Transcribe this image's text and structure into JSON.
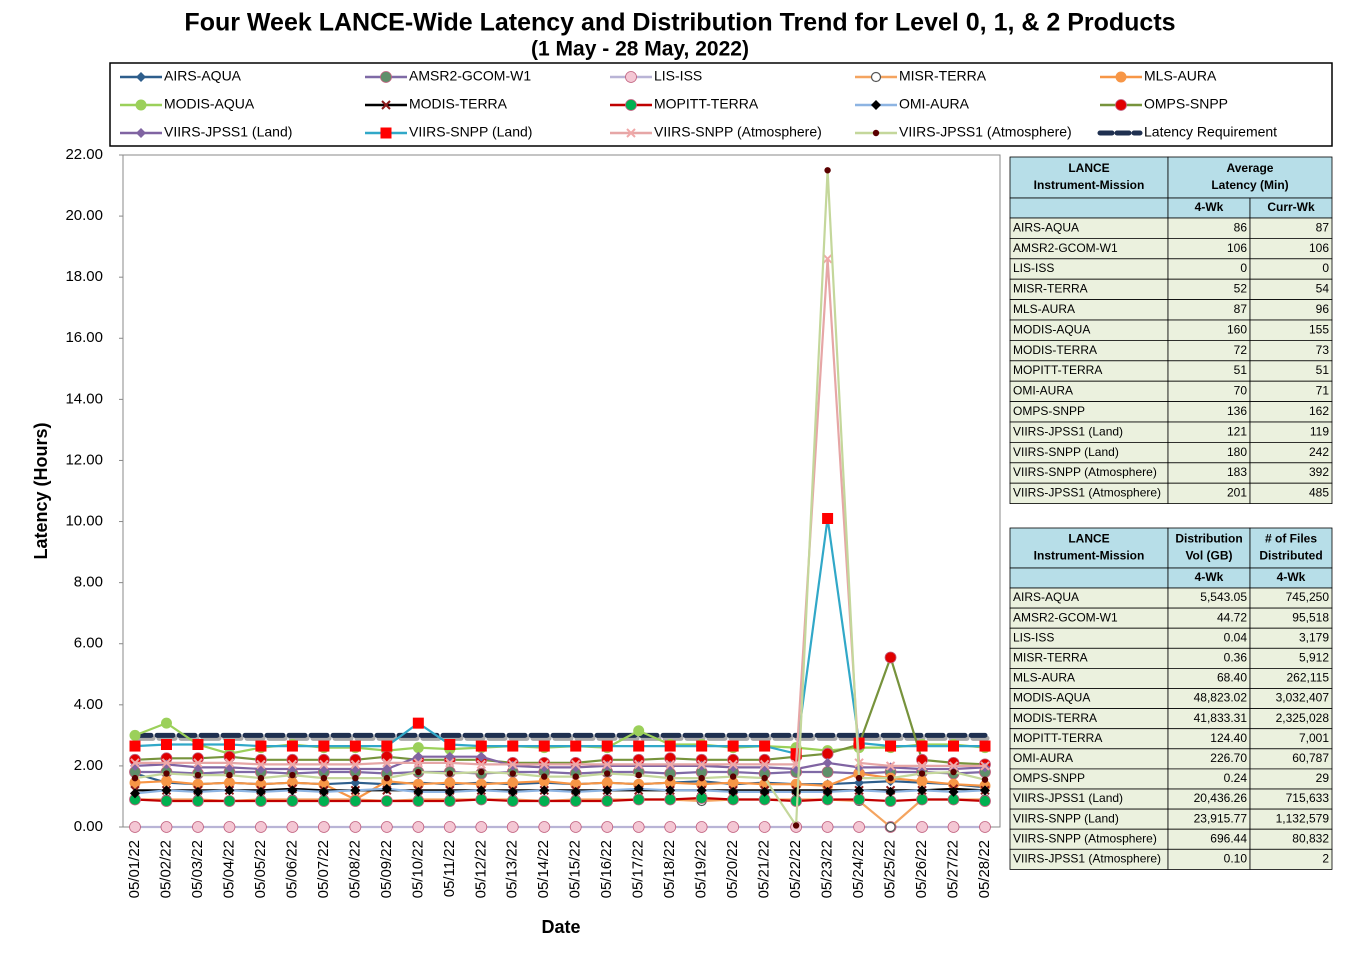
{
  "chart_data": {
    "type": "line",
    "title": "Four Week LANCE-Wide Latency and Distribution Trend for Level 0, 1, & 2 Products",
    "subtitle": "(1  May   - 28  May,  2022)",
    "x_label": "Date",
    "y_label": "Latency (Hours)",
    "categories": [
      "05/01/22",
      "05/02/22",
      "05/03/22",
      "05/04/22",
      "05/05/22",
      "05/06/22",
      "05/07/22",
      "05/08/22",
      "05/09/22",
      "05/10/22",
      "05/11/22",
      "05/12/22",
      "05/13/22",
      "05/14/22",
      "05/15/22",
      "05/16/22",
      "05/17/22",
      "05/18/22",
      "05/19/22",
      "05/20/22",
      "05/21/22",
      "05/22/22",
      "05/23/22",
      "05/24/22",
      "05/25/22",
      "05/26/22",
      "05/27/22",
      "05/28/22"
    ],
    "ylim": [
      0,
      22
    ],
    "yticks": [
      {
        "value": 0,
        "label": "0.00"
      },
      {
        "value": 2,
        "label": "2.00"
      },
      {
        "value": 4,
        "label": "4.00"
      },
      {
        "value": 6,
        "label": "6.00"
      },
      {
        "value": 8,
        "label": "8.00"
      },
      {
        "value": 10,
        "label": "10.00"
      },
      {
        "value": 12,
        "label": "12.00"
      },
      {
        "value": 14,
        "label": "14.00"
      },
      {
        "value": 16,
        "label": "16.00"
      },
      {
        "value": 18,
        "label": "18.00"
      },
      {
        "value": 20,
        "label": "20.00"
      },
      {
        "value": 22,
        "label": "22.00"
      }
    ],
    "grid": false,
    "series": [
      {
        "name": "AIRS-AQUA",
        "color": "#2e5e8c",
        "marker": "diamond",
        "marker_color": "#2e5e8c",
        "values": [
          1.75,
          1.45,
          1.4,
          1.45,
          1.4,
          1.45,
          1.4,
          1.45,
          1.4,
          1.45,
          1.4,
          1.45,
          1.4,
          1.45,
          1.4,
          1.45,
          1.4,
          1.45,
          1.5,
          1.4,
          1.45,
          1.4,
          1.4,
          1.45,
          1.5,
          1.45,
          1.4,
          1.3
        ]
      },
      {
        "name": "AMSR2-GCOM-W1",
        "color": "#7f6aa6",
        "marker": "circle",
        "marker_color": "#5f8f6a",
        "values": [
          1.8,
          1.8,
          1.75,
          1.8,
          1.8,
          1.75,
          1.8,
          1.8,
          1.75,
          1.8,
          1.8,
          1.75,
          1.8,
          1.8,
          1.75,
          1.8,
          1.8,
          1.75,
          1.8,
          1.8,
          1.75,
          1.8,
          1.8,
          1.75,
          1.8,
          1.8,
          1.75,
          1.8
        ]
      },
      {
        "name": "LIS-ISS",
        "color": "#b9b4d6",
        "marker": "circle",
        "marker_color": "#f4c7d4",
        "values": [
          0,
          0,
          0,
          0,
          0,
          0,
          0,
          0,
          0,
          0,
          0,
          0,
          0,
          0,
          0,
          0,
          0,
          0,
          0,
          0,
          0,
          0,
          0,
          0,
          0,
          0,
          0,
          0
        ]
      },
      {
        "name": "MISR-TERRA",
        "color": "#f4a460",
        "marker": "open-circle",
        "marker_color": "#ffffff",
        "values": [
          0.9,
          0.9,
          0.9,
          0.85,
          0.9,
          0.9,
          0.9,
          0.9,
          0.85,
          0.9,
          0.9,
          0.9,
          0.9,
          0.85,
          0.9,
          0.9,
          0.9,
          0.9,
          0.85,
          0.9,
          0.9,
          0.9,
          0.9,
          0.85,
          0,
          0.9,
          0.9,
          0.9
        ]
      },
      {
        "name": "MLS-AURA",
        "color": "#f79646",
        "marker": "circle",
        "marker_color": "#f79646",
        "values": [
          1.45,
          1.5,
          1.4,
          1.45,
          1.4,
          1.45,
          1.4,
          0.9,
          1.5,
          1.4,
          1.45,
          1.4,
          1.45,
          1.5,
          1.4,
          1.45,
          1.4,
          1.45,
          1.4,
          1.45,
          1.4,
          1.4,
          1.35,
          1.75,
          1.6,
          1.5,
          1.4,
          1.35
        ]
      },
      {
        "name": "MODIS-AQUA",
        "color": "#9bd05a",
        "marker": "circle",
        "marker_color": "#9bd05a",
        "values": [
          3.0,
          3.4,
          2.7,
          2.4,
          2.6,
          2.7,
          2.6,
          2.6,
          2.5,
          2.6,
          2.55,
          2.6,
          2.65,
          2.6,
          2.65,
          2.6,
          3.15,
          2.7,
          2.7,
          2.6,
          2.65,
          2.6,
          2.5,
          2.6,
          2.6,
          2.7,
          2.7,
          2.6
        ]
      },
      {
        "name": "MODIS-TERRA",
        "color": "#000000",
        "marker": "x",
        "marker_color": "#8b1a1a",
        "values": [
          1.2,
          1.2,
          1.2,
          1.2,
          1.2,
          1.25,
          1.2,
          1.2,
          1.2,
          1.2,
          1.2,
          1.2,
          1.2,
          1.2,
          1.2,
          1.2,
          1.2,
          1.2,
          1.2,
          1.2,
          1.2,
          1.2,
          1.2,
          1.2,
          1.2,
          1.2,
          1.25,
          1.2
        ]
      },
      {
        "name": "MOPITT-TERRA",
        "color": "#c00000",
        "marker": "circle",
        "marker_color": "#00b050",
        "values": [
          0.9,
          0.85,
          0.85,
          0.85,
          0.85,
          0.85,
          0.85,
          0.85,
          0.85,
          0.85,
          0.85,
          0.9,
          0.85,
          0.85,
          0.85,
          0.85,
          0.9,
          0.9,
          0.95,
          0.9,
          0.9,
          0.85,
          0.9,
          0.9,
          0.85,
          0.9,
          0.9,
          0.85
        ]
      },
      {
        "name": "OMI-AURA",
        "color": "#8db4e2",
        "marker": "diamond",
        "marker_color": "#000000",
        "values": [
          1.1,
          1.2,
          1.15,
          1.2,
          1.15,
          1.2,
          1.15,
          1.2,
          1.25,
          1.15,
          1.15,
          1.2,
          1.15,
          1.2,
          1.15,
          1.2,
          1.25,
          1.2,
          1.2,
          1.15,
          1.15,
          1.15,
          1.15,
          1.2,
          1.15,
          1.2,
          1.15,
          1.2
        ]
      },
      {
        "name": "OMPS-SNPP",
        "color": "#77933c",
        "marker": "circle",
        "marker_color": "#e00000",
        "values": [
          2.2,
          2.25,
          2.25,
          2.3,
          2.2,
          2.2,
          2.2,
          2.2,
          2.3,
          2.2,
          2.2,
          2.2,
          2.1,
          2.1,
          2.1,
          2.2,
          2.2,
          2.25,
          2.2,
          2.2,
          2.2,
          2.3,
          2.4,
          2.7,
          5.55,
          2.2,
          2.1,
          2.05
        ]
      },
      {
        "name": "VIIRS-JPSS1 (Land)",
        "color": "#8064a2",
        "marker": "diamond",
        "marker_color": "#8064a2",
        "values": [
          2.0,
          2.05,
          1.95,
          1.95,
          1.9,
          1.9,
          1.9,
          1.9,
          1.9,
          2.3,
          2.3,
          2.3,
          2.0,
          1.95,
          1.95,
          2.0,
          2.0,
          2.0,
          2.0,
          1.95,
          1.95,
          1.9,
          2.1,
          1.95,
          1.95,
          1.9,
          1.9,
          1.95
        ]
      },
      {
        "name": "VIIRS-SNPP (Land)",
        "color": "#31a8c8",
        "marker": "square",
        "marker_color": "#ff0000",
        "values": [
          2.65,
          2.7,
          2.7,
          2.7,
          2.65,
          2.65,
          2.65,
          2.65,
          2.65,
          3.4,
          2.7,
          2.65,
          2.65,
          2.65,
          2.65,
          2.65,
          2.65,
          2.65,
          2.65,
          2.65,
          2.65,
          2.4,
          10.1,
          2.75,
          2.65,
          2.65,
          2.65,
          2.65
        ]
      },
      {
        "name": "VIIRS-SNPP (Atmosphere)",
        "color": "#e6a6a6",
        "marker": "x",
        "marker_color": "#f0a8a8",
        "values": [
          2.1,
          2.1,
          2.1,
          2.1,
          2.05,
          2.05,
          2.05,
          2.05,
          2.1,
          2.1,
          2.1,
          2.05,
          2.05,
          2.05,
          2.05,
          2.05,
          2.05,
          2.05,
          2.05,
          2.05,
          2.05,
          2.05,
          18.6,
          2.1,
          2.0,
          2.0,
          2.0,
          2.0
        ]
      },
      {
        "name": "VIIRS-JPSS1 (Atmosphere)",
        "color": "#c4d79b",
        "marker": "small-circle",
        "marker_color": "#5a0000",
        "values": [
          1.6,
          1.75,
          1.7,
          1.7,
          1.6,
          1.7,
          1.6,
          1.6,
          1.6,
          1.8,
          1.75,
          1.8,
          1.75,
          1.65,
          1.65,
          1.75,
          1.7,
          1.6,
          1.6,
          1.65,
          1.6,
          0.05,
          21.5,
          1.6,
          1.6,
          1.75,
          1.8,
          1.55
        ]
      },
      {
        "name": "Latency Requirement",
        "color": "#1f3050",
        "marker": "none",
        "marker_color": "#1f3050",
        "dashed": true,
        "values": [
          3,
          3,
          3,
          3,
          3,
          3,
          3,
          3,
          3,
          3,
          3,
          3,
          3,
          3,
          3,
          3,
          3,
          3,
          3,
          3,
          3,
          3,
          3,
          3,
          3,
          3,
          3,
          3
        ]
      }
    ]
  },
  "tables": [
    {
      "header_name": [
        "LANCE",
        "Instrument-Mission"
      ],
      "header_group": [
        "Average",
        "Latency (Min)"
      ],
      "header_cols": [
        "4-Wk",
        "Curr-Wk"
      ],
      "rows": [
        [
          "AIRS-AQUA",
          "86",
          "87"
        ],
        [
          "AMSR2-GCOM-W1",
          "106",
          "106"
        ],
        [
          "LIS-ISS",
          "0",
          "0"
        ],
        [
          "MISR-TERRA",
          "52",
          "54"
        ],
        [
          "MLS-AURA",
          "87",
          "96"
        ],
        [
          "MODIS-AQUA",
          "160",
          "155"
        ],
        [
          "MODIS-TERRA",
          "72",
          "73"
        ],
        [
          "MOPITT-TERRA",
          "51",
          "51"
        ],
        [
          "OMI-AURA",
          "70",
          "71"
        ],
        [
          "OMPS-SNPP",
          "136",
          "162"
        ],
        [
          "VIIRS-JPSS1 (Land)",
          "121",
          "119"
        ],
        [
          "VIIRS-SNPP (Land)",
          "180",
          "242"
        ],
        [
          "VIIRS-SNPP (Atmosphere)",
          "183",
          "392"
        ],
        [
          "VIIRS-JPSS1 (Atmosphere)",
          "201",
          "485"
        ]
      ]
    },
    {
      "header_name": [
        "LANCE",
        "Instrument-Mission"
      ],
      "header_col_titles": [
        [
          "Distribution",
          "Vol (GB)"
        ],
        [
          "# of Files",
          "Distributed"
        ]
      ],
      "header_cols": [
        "4-Wk",
        "4-Wk"
      ],
      "rows": [
        [
          "AIRS-AQUA",
          "5,543.05",
          "745,250"
        ],
        [
          "AMSR2-GCOM-W1",
          "44.72",
          "95,518"
        ],
        [
          "LIS-ISS",
          "0.04",
          "3,179"
        ],
        [
          "MISR-TERRA",
          "0.36",
          "5,912"
        ],
        [
          "MLS-AURA",
          "68.40",
          "262,115"
        ],
        [
          "MODIS-AQUA",
          "48,823.02",
          "3,032,407"
        ],
        [
          "MODIS-TERRA",
          "41,833.31",
          "2,325,028"
        ],
        [
          "MOPITT-TERRA",
          "124.40",
          "7,001"
        ],
        [
          "OMI-AURA",
          "226.70",
          "60,787"
        ],
        [
          "OMPS-SNPP",
          "0.24",
          "29"
        ],
        [
          "VIIRS-JPSS1 (Land)",
          "20,436.26",
          "715,633"
        ],
        [
          "VIIRS-SNPP (Land)",
          "23,915.77",
          "1,132,579"
        ],
        [
          "VIIRS-SNPP (Atmosphere)",
          "696.44",
          "80,832"
        ],
        [
          "VIIRS-JPSS1 (Atmosphere)",
          "0.10",
          "2"
        ]
      ]
    }
  ]
}
